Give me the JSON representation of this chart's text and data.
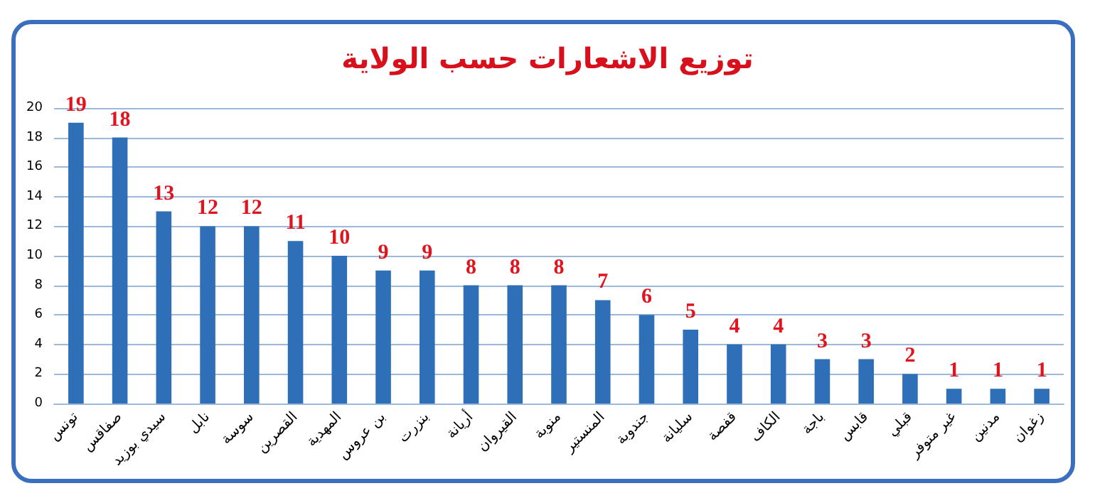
{
  "chart_data": {
    "type": "bar",
    "title": "توزيع الاشعارات حسب الولاية",
    "categories": [
      "تونس",
      "صفاقس",
      "سيدي بوزيد",
      "نابل",
      "سوسة",
      "القصرين",
      "المهدية",
      "بن عروس",
      "بنزرت",
      "أريانة",
      "القيروان",
      "منوبة",
      "المنستير",
      "جندوبة",
      "سليانة",
      "قفصة",
      "الكاف",
      "باجة",
      "قابس",
      "قبلي",
      "غير متوفر",
      "مدنين",
      "زغوان"
    ],
    "values": [
      19,
      18,
      13,
      12,
      12,
      11,
      10,
      9,
      9,
      8,
      8,
      8,
      7,
      6,
      5,
      4,
      4,
      3,
      3,
      2,
      1,
      1,
      1
    ],
    "color": "#2e6fb7",
    "ylim": [
      0,
      20
    ],
    "yticks": [
      0,
      2,
      4,
      6,
      8,
      10,
      12,
      14,
      16,
      18,
      20
    ],
    "grid": "y",
    "data_labels": true
  }
}
